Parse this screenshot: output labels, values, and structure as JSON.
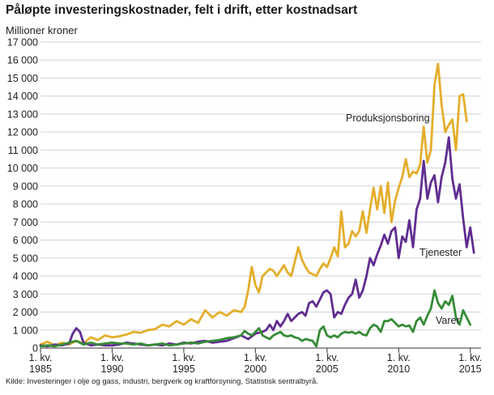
{
  "title": "Påløpte investeringskostnader, felt i drift, etter kostnadsart",
  "source": "Kilde: Investeringer i olje og gass, industri, bergverk og kraftforsyning, Statistisk sentralbyrå.",
  "chart_data": {
    "type": "line",
    "title": "Påløpte investeringskostnader, felt i drift, etter kostnadsart",
    "xlabel": "",
    "ylabel": "Millioner kroner",
    "ylim": [
      0,
      17000
    ],
    "yticks": [
      0,
      1000,
      2000,
      3000,
      4000,
      5000,
      6000,
      7000,
      8000,
      9000,
      10000,
      11000,
      12000,
      13000,
      14000,
      15000,
      16000,
      17000
    ],
    "ytick_labels": [
      "0",
      "1 000",
      "2 000",
      "3 000",
      "4 000",
      "5 000",
      "6 000",
      "7 000",
      "8 000",
      "9 000",
      "10 000",
      "11 000",
      "12 000",
      "13 000",
      "14 000",
      "15 000",
      "16 000",
      "17 000"
    ],
    "xlim": [
      1985.0,
      2015.75
    ],
    "xticks": [
      {
        "x": 1985,
        "line1": "1. kv.",
        "line2": "1985"
      },
      {
        "x": 1990,
        "line1": "1. kv.",
        "line2": "1990"
      },
      {
        "x": 1995,
        "line1": "1. kv.",
        "line2": "1995"
      },
      {
        "x": 2000,
        "line1": "1. kv.",
        "line2": "2000"
      },
      {
        "x": 2005,
        "line1": "1. kv.",
        "line2": "2005"
      },
      {
        "x": 2010,
        "line1": "1. kv.",
        "line2": "2010"
      },
      {
        "x": 2015,
        "line1": "1. kv.",
        "line2": "2015"
      }
    ],
    "grid": true,
    "series": [
      {
        "name": "Produksjonsboring",
        "color": "#e4ae2b",
        "points": [
          [
            1985.0,
            200
          ],
          [
            1985.5,
            350
          ],
          [
            1986.0,
            150
          ],
          [
            1986.5,
            300
          ],
          [
            1987.0,
            200
          ],
          [
            1987.5,
            400
          ],
          [
            1988.0,
            250
          ],
          [
            1988.5,
            600
          ],
          [
            1989.0,
            450
          ],
          [
            1989.5,
            700
          ],
          [
            1990.0,
            600
          ],
          [
            1990.5,
            650
          ],
          [
            1991.0,
            750
          ],
          [
            1991.5,
            900
          ],
          [
            1992.0,
            850
          ],
          [
            1992.5,
            1000
          ],
          [
            1993.0,
            1050
          ],
          [
            1993.5,
            1300
          ],
          [
            1994.0,
            1200
          ],
          [
            1994.5,
            1500
          ],
          [
            1995.0,
            1300
          ],
          [
            1995.5,
            1600
          ],
          [
            1996.0,
            1400
          ],
          [
            1996.5,
            2100
          ],
          [
            1997.0,
            1700
          ],
          [
            1997.5,
            2000
          ],
          [
            1998.0,
            1800
          ],
          [
            1998.5,
            2100
          ],
          [
            1999.0,
            2000
          ],
          [
            1999.25,
            2300
          ],
          [
            1999.5,
            3200
          ],
          [
            1999.75,
            4500
          ],
          [
            2000.0,
            3500
          ],
          [
            2000.25,
            3100
          ],
          [
            2000.5,
            4000
          ],
          [
            2000.75,
            4200
          ],
          [
            2001.0,
            4400
          ],
          [
            2001.25,
            4300
          ],
          [
            2001.5,
            4000
          ],
          [
            2001.75,
            4300
          ],
          [
            2002.0,
            4600
          ],
          [
            2002.25,
            4200
          ],
          [
            2002.5,
            4000
          ],
          [
            2002.75,
            4800
          ],
          [
            2003.0,
            5600
          ],
          [
            2003.25,
            4900
          ],
          [
            2003.5,
            4500
          ],
          [
            2003.75,
            4200
          ],
          [
            2004.0,
            4100
          ],
          [
            2004.25,
            4000
          ],
          [
            2004.5,
            4400
          ],
          [
            2004.75,
            4700
          ],
          [
            2005.0,
            4500
          ],
          [
            2005.25,
            5000
          ],
          [
            2005.5,
            5600
          ],
          [
            2005.75,
            5100
          ],
          [
            2006.0,
            7600
          ],
          [
            2006.25,
            5600
          ],
          [
            2006.5,
            5800
          ],
          [
            2006.75,
            6500
          ],
          [
            2007.0,
            6200
          ],
          [
            2007.25,
            6500
          ],
          [
            2007.5,
            7600
          ],
          [
            2007.75,
            6400
          ],
          [
            2008.0,
            7700
          ],
          [
            2008.25,
            8900
          ],
          [
            2008.5,
            7700
          ],
          [
            2008.75,
            9000
          ],
          [
            2009.0,
            7500
          ],
          [
            2009.25,
            9200
          ],
          [
            2009.5,
            7000
          ],
          [
            2009.75,
            8200
          ],
          [
            2010.0,
            8900
          ],
          [
            2010.25,
            9500
          ],
          [
            2010.5,
            10500
          ],
          [
            2010.75,
            9500
          ],
          [
            2011.0,
            9800
          ],
          [
            2011.25,
            9700
          ],
          [
            2011.5,
            10200
          ],
          [
            2011.75,
            12300
          ],
          [
            2012.0,
            10300
          ],
          [
            2012.25,
            11000
          ],
          [
            2012.5,
            14600
          ],
          [
            2012.75,
            15800
          ],
          [
            2013.0,
            13500
          ],
          [
            2013.25,
            12000
          ],
          [
            2013.5,
            12400
          ],
          [
            2013.75,
            12700
          ],
          [
            2014.0,
            11000
          ],
          [
            2014.25,
            14000
          ],
          [
            2014.5,
            14100
          ],
          [
            2014.75,
            12600
          ]
        ]
      },
      {
        "name": "Tjenester",
        "color": "#612d90",
        "points": [
          [
            1985.0,
            150
          ],
          [
            1985.5,
            100
          ],
          [
            1986.0,
            200
          ],
          [
            1986.5,
            150
          ],
          [
            1987.0,
            250
          ],
          [
            1987.25,
            800
          ],
          [
            1987.5,
            1100
          ],
          [
            1987.75,
            900
          ],
          [
            1988.0,
            300
          ],
          [
            1988.5,
            150
          ],
          [
            1989.0,
            200
          ],
          [
            1989.5,
            150
          ],
          [
            1990.0,
            150
          ],
          [
            1990.5,
            200
          ],
          [
            1991.0,
            300
          ],
          [
            1991.5,
            250
          ],
          [
            1992.0,
            200
          ],
          [
            1992.5,
            150
          ],
          [
            1993.0,
            200
          ],
          [
            1993.5,
            150
          ],
          [
            1994.0,
            250
          ],
          [
            1994.5,
            200
          ],
          [
            1995.0,
            300
          ],
          [
            1995.5,
            250
          ],
          [
            1996.0,
            350
          ],
          [
            1996.5,
            400
          ],
          [
            1997.0,
            300
          ],
          [
            1997.5,
            350
          ],
          [
            1998.0,
            400
          ],
          [
            1998.5,
            550
          ],
          [
            1999.0,
            700
          ],
          [
            1999.5,
            500
          ],
          [
            2000.0,
            800
          ],
          [
            2000.5,
            900
          ],
          [
            2000.75,
            1000
          ],
          [
            2001.0,
            1300
          ],
          [
            2001.25,
            1000
          ],
          [
            2001.5,
            1500
          ],
          [
            2001.75,
            1200
          ],
          [
            2002.0,
            1500
          ],
          [
            2002.25,
            1900
          ],
          [
            2002.5,
            1500
          ],
          [
            2002.75,
            1700
          ],
          [
            2003.0,
            1900
          ],
          [
            2003.25,
            2000
          ],
          [
            2003.5,
            1800
          ],
          [
            2003.75,
            2500
          ],
          [
            2004.0,
            2600
          ],
          [
            2004.25,
            2300
          ],
          [
            2004.5,
            2700
          ],
          [
            2004.75,
            3100
          ],
          [
            2005.0,
            3200
          ],
          [
            2005.25,
            3000
          ],
          [
            2005.5,
            1700
          ],
          [
            2005.75,
            2000
          ],
          [
            2006.0,
            1900
          ],
          [
            2006.25,
            2400
          ],
          [
            2006.5,
            2800
          ],
          [
            2006.75,
            3000
          ],
          [
            2007.0,
            3800
          ],
          [
            2007.25,
            2800
          ],
          [
            2007.5,
            3200
          ],
          [
            2007.75,
            4000
          ],
          [
            2008.0,
            5000
          ],
          [
            2008.25,
            4600
          ],
          [
            2008.5,
            5200
          ],
          [
            2008.75,
            5700
          ],
          [
            2009.0,
            6300
          ],
          [
            2009.25,
            5800
          ],
          [
            2009.5,
            6500
          ],
          [
            2009.75,
            6700
          ],
          [
            2010.0,
            5000
          ],
          [
            2010.25,
            6200
          ],
          [
            2010.5,
            5900
          ],
          [
            2010.75,
            7100
          ],
          [
            2011.0,
            5600
          ],
          [
            2011.25,
            7700
          ],
          [
            2011.5,
            8300
          ],
          [
            2011.75,
            10400
          ],
          [
            2012.0,
            8300
          ],
          [
            2012.25,
            9200
          ],
          [
            2012.5,
            9600
          ],
          [
            2012.75,
            8100
          ],
          [
            2013.0,
            9500
          ],
          [
            2013.25,
            10300
          ],
          [
            2013.5,
            11700
          ],
          [
            2013.75,
            9400
          ],
          [
            2014.0,
            8300
          ],
          [
            2014.25,
            9100
          ],
          [
            2014.5,
            7200
          ],
          [
            2014.75,
            5600
          ],
          [
            2015.0,
            6700
          ],
          [
            2015.25,
            5300
          ]
        ]
      },
      {
        "name": "Varer",
        "color": "#368b37",
        "points": [
          [
            1985.0,
            100
          ],
          [
            1985.5,
            150
          ],
          [
            1986.0,
            100
          ],
          [
            1986.5,
            200
          ],
          [
            1987.0,
            300
          ],
          [
            1987.5,
            400
          ],
          [
            1988.0,
            200
          ],
          [
            1988.5,
            300
          ],
          [
            1989.0,
            200
          ],
          [
            1989.5,
            250
          ],
          [
            1990.0,
            300
          ],
          [
            1990.5,
            250
          ],
          [
            1991.0,
            250
          ],
          [
            1991.5,
            200
          ],
          [
            1992.0,
            250
          ],
          [
            1992.5,
            150
          ],
          [
            1993.0,
            200
          ],
          [
            1993.5,
            250
          ],
          [
            1994.0,
            150
          ],
          [
            1994.5,
            200
          ],
          [
            1995.0,
            250
          ],
          [
            1995.5,
            300
          ],
          [
            1996.0,
            250
          ],
          [
            1996.5,
            350
          ],
          [
            1997.0,
            400
          ],
          [
            1997.5,
            450
          ],
          [
            1998.0,
            550
          ],
          [
            1998.5,
            600
          ],
          [
            1999.0,
            700
          ],
          [
            1999.25,
            950
          ],
          [
            1999.5,
            800
          ],
          [
            1999.75,
            700
          ],
          [
            2000.0,
            900
          ],
          [
            2000.25,
            1100
          ],
          [
            2000.5,
            700
          ],
          [
            2000.75,
            600
          ],
          [
            2001.0,
            500
          ],
          [
            2001.25,
            700
          ],
          [
            2001.5,
            800
          ],
          [
            2001.75,
            900
          ],
          [
            2002.0,
            700
          ],
          [
            2002.25,
            650
          ],
          [
            2002.5,
            700
          ],
          [
            2002.75,
            600
          ],
          [
            2003.0,
            550
          ],
          [
            2003.25,
            400
          ],
          [
            2003.5,
            500
          ],
          [
            2003.75,
            450
          ],
          [
            2004.0,
            400
          ],
          [
            2004.25,
            100
          ],
          [
            2004.5,
            1000
          ],
          [
            2004.75,
            1200
          ],
          [
            2005.0,
            700
          ],
          [
            2005.25,
            600
          ],
          [
            2005.5,
            700
          ],
          [
            2005.75,
            600
          ],
          [
            2006.0,
            800
          ],
          [
            2006.25,
            900
          ],
          [
            2006.5,
            850
          ],
          [
            2006.75,
            900
          ],
          [
            2007.0,
            800
          ],
          [
            2007.25,
            900
          ],
          [
            2007.5,
            750
          ],
          [
            2007.75,
            700
          ],
          [
            2008.0,
            1100
          ],
          [
            2008.25,
            1300
          ],
          [
            2008.5,
            1200
          ],
          [
            2008.75,
            900
          ],
          [
            2009.0,
            1500
          ],
          [
            2009.25,
            1500
          ],
          [
            2009.5,
            1600
          ],
          [
            2009.75,
            1400
          ],
          [
            2010.0,
            1200
          ],
          [
            2010.25,
            1300
          ],
          [
            2010.5,
            1200
          ],
          [
            2010.75,
            1250
          ],
          [
            2011.0,
            900
          ],
          [
            2011.25,
            1500
          ],
          [
            2011.5,
            1700
          ],
          [
            2011.75,
            1300
          ],
          [
            2012.0,
            1800
          ],
          [
            2012.25,
            2200
          ],
          [
            2012.5,
            3200
          ],
          [
            2012.75,
            2500
          ],
          [
            2013.0,
            2200
          ],
          [
            2013.25,
            2600
          ],
          [
            2013.5,
            2400
          ],
          [
            2013.75,
            2900
          ],
          [
            2014.0,
            1700
          ],
          [
            2014.25,
            1300
          ],
          [
            2014.5,
            2100
          ],
          [
            2014.75,
            1700
          ],
          [
            2015.0,
            1300
          ]
        ]
      }
    ],
    "annotations": [
      {
        "text": "Produksjonsboring",
        "series": "Produksjonsboring"
      },
      {
        "text": "Tjenester",
        "series": "Tjenester"
      },
      {
        "text": "Varer",
        "series": "Varer"
      }
    ],
    "colors": {
      "grid": "#cfd2d4",
      "axis": "#333333",
      "text": "#222222"
    }
  }
}
